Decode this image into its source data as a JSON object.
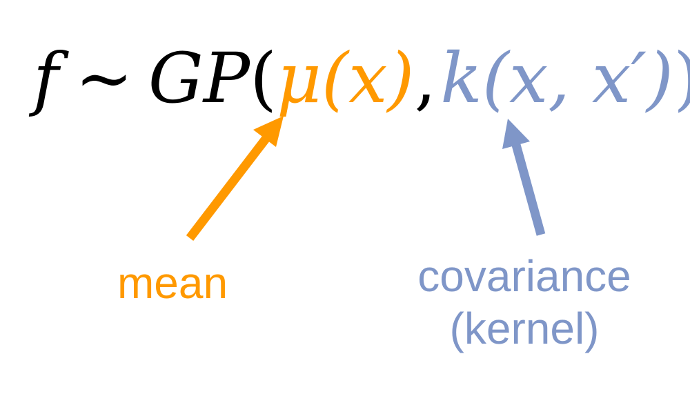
{
  "formula": {
    "f": "f",
    "tilde": "~",
    "gp": "GP",
    "open_paren": "(",
    "mu": "μ",
    "mean_args": "(x)",
    "comma": ",",
    "k": "k",
    "kernel_args": "(x, x′)",
    "close_paren": ")"
  },
  "labels": {
    "mean": "mean",
    "covariance": "covariance",
    "kernel": "(kernel)"
  },
  "colors": {
    "text": "#000000",
    "mean": "#ff9900",
    "covariance": "#7f96c8"
  }
}
